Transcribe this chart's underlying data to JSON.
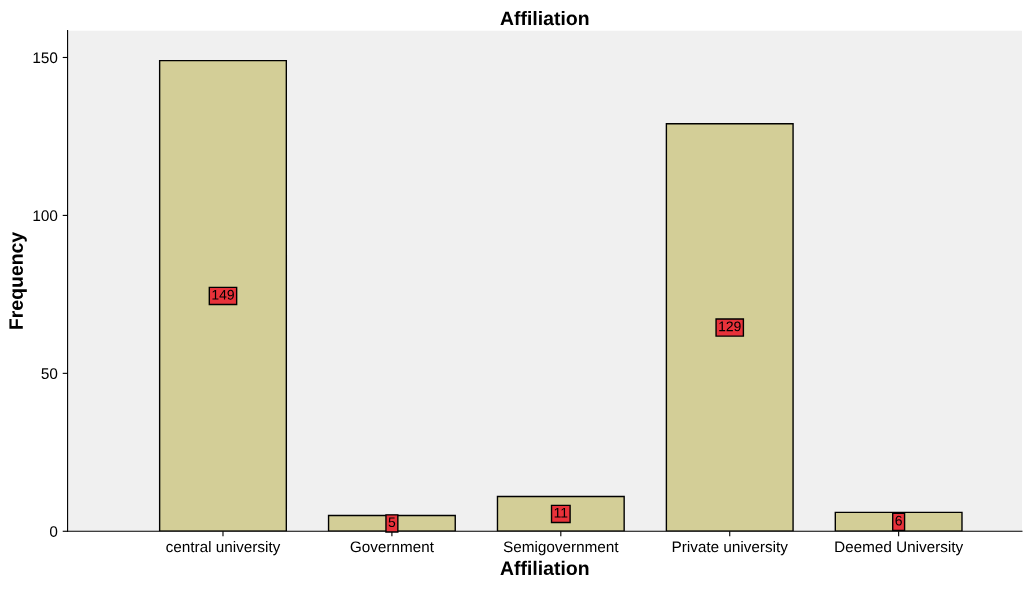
{
  "chart_data": {
    "type": "bar",
    "title": "Affiliation",
    "xlabel": "Affiliation",
    "ylabel": "Frequency",
    "categories": [
      "central university",
      "Government",
      "Semigovernment",
      "Private university",
      "Deemed University"
    ],
    "values": [
      149,
      5,
      11,
      129,
      6
    ],
    "color": "#d3ce97",
    "ylim": [
      0,
      158.5
    ],
    "yticks": [
      0,
      50,
      100,
      150
    ],
    "data_labels": true,
    "grid": false,
    "legend": false
  }
}
